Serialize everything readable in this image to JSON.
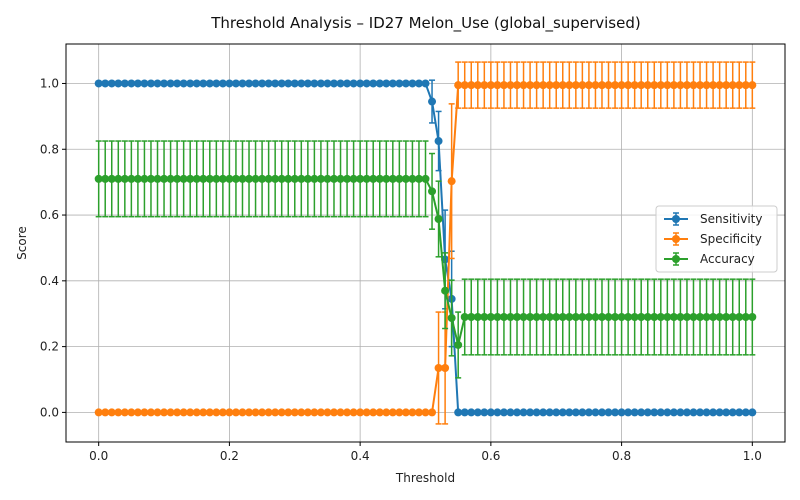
{
  "chart_data": {
    "type": "line",
    "title": "Threshold Analysis – ID27 Melon_Use (global_supervised)",
    "xlabel": "Threshold",
    "ylabel": "Score",
    "xlim": [
      -0.05,
      1.05
    ],
    "ylim": [
      -0.09,
      1.12
    ],
    "xticks": [
      0.0,
      0.2,
      0.4,
      0.6,
      0.8,
      1.0
    ],
    "xtick_labels": [
      "0.0",
      "0.2",
      "0.4",
      "0.6",
      "0.8",
      "1.0"
    ],
    "yticks": [
      0.0,
      0.2,
      0.4,
      0.6,
      0.8,
      1.0
    ],
    "ytick_labels": [
      "0.0",
      "0.2",
      "0.4",
      "0.6",
      "0.8",
      "1.0"
    ],
    "grid": true,
    "legend_position": "center-right",
    "x": [
      0.0,
      0.01,
      0.02,
      0.03,
      0.04,
      0.05,
      0.06,
      0.07,
      0.08,
      0.09,
      0.1,
      0.11,
      0.12,
      0.13,
      0.14,
      0.15,
      0.16,
      0.17,
      0.18,
      0.19,
      0.2,
      0.21,
      0.22,
      0.23,
      0.24,
      0.25,
      0.26,
      0.27,
      0.28,
      0.29,
      0.3,
      0.31,
      0.32,
      0.33,
      0.34,
      0.35,
      0.36,
      0.37,
      0.38,
      0.39,
      0.4,
      0.41,
      0.42,
      0.43,
      0.44,
      0.45,
      0.46,
      0.47,
      0.48,
      0.49,
      0.5,
      0.51,
      0.52,
      0.53,
      0.54,
      0.55,
      0.56,
      0.57,
      0.58,
      0.59,
      0.6,
      0.61,
      0.62,
      0.63,
      0.64,
      0.65,
      0.66,
      0.67,
      0.68,
      0.69,
      0.7,
      0.71,
      0.72,
      0.73,
      0.74,
      0.75,
      0.76,
      0.77,
      0.78,
      0.79,
      0.8,
      0.81,
      0.82,
      0.83,
      0.84,
      0.85,
      0.86,
      0.87,
      0.88,
      0.89,
      0.9,
      0.91,
      0.92,
      0.93,
      0.94,
      0.95,
      0.96,
      0.97,
      0.98,
      0.99,
      1.0
    ],
    "series": [
      {
        "name": "Sensitivity",
        "color": "#1f77b4",
        "break_index": 51,
        "before": {
          "value": 1.0,
          "err": 0.0
        },
        "mid": [
          {
            "value": 0.945,
            "err": 0.065
          },
          {
            "value": 0.825,
            "err": 0.09
          },
          {
            "value": 0.465,
            "err": 0.15
          },
          {
            "value": 0.345,
            "err": 0.145
          }
        ],
        "after": {
          "value": 0.0,
          "err": 0.0
        }
      },
      {
        "name": "Specificity",
        "color": "#ff7f0e",
        "break_index": 52,
        "before": {
          "value": 0.0,
          "err": 0.0
        },
        "mid": [
          {
            "value": 0.135,
            "err": 0.17
          },
          {
            "value": 0.135,
            "err": 0.17
          },
          {
            "value": 0.703,
            "err": 0.235
          }
        ],
        "after": {
          "value": 0.995,
          "err": 0.07
        }
      },
      {
        "name": "Accuracy",
        "color": "#2ca02c",
        "break_index": 51,
        "before": {
          "value": 0.71,
          "err": 0.115
        },
        "mid": [
          {
            "value": 0.672,
            "err": 0.115
          },
          {
            "value": 0.588,
            "err": 0.115
          },
          {
            "value": 0.37,
            "err": 0.115
          },
          {
            "value": 0.287,
            "err": 0.115
          },
          {
            "value": 0.205,
            "err": 0.1
          }
        ],
        "after": {
          "value": 0.29,
          "err": 0.115
        }
      }
    ]
  }
}
